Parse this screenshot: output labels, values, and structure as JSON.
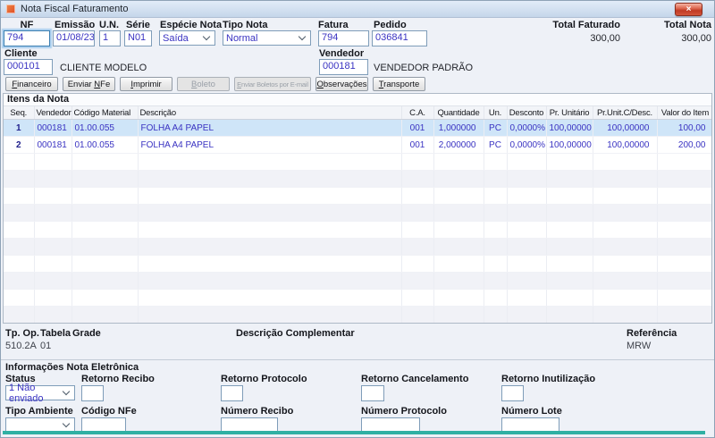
{
  "window": {
    "title": "Nota Fiscal Faturamento",
    "close_glyph": "×"
  },
  "colors": {
    "titlebar": "#c5d6ea",
    "window_bg": "#eef1f7",
    "selected_row": "#cfe5f8",
    "value_text": "#3a33c2",
    "close_button_red": "#c03a24",
    "teal_bottom_bar": "#2fb0a3"
  },
  "header": {
    "fields": [
      {
        "label": "NF",
        "value": "794",
        "type": "input"
      },
      {
        "label": "Emissão",
        "value": "01/08/23",
        "type": "input"
      },
      {
        "label": "U.N.",
        "value": "1",
        "type": "input"
      },
      {
        "label": "Série",
        "value": "N01",
        "type": "input"
      },
      {
        "label": "Espécie Nota",
        "value": "Saída",
        "type": "select"
      },
      {
        "label": "Tipo Nota",
        "value": "Normal",
        "type": "select"
      },
      {
        "label": "Fatura",
        "value": "794",
        "type": "input"
      },
      {
        "label": "Pedido",
        "value": "036841",
        "type": "input"
      }
    ],
    "total_faturado": {
      "label": "Total Faturado",
      "value": "300,00"
    },
    "total_nota": {
      "label": "Total Nota",
      "value": "300,00"
    },
    "cliente": {
      "label": "Cliente",
      "code": "000101",
      "name": "CLIENTE MODELO"
    },
    "vendedor": {
      "label": "Vendedor",
      "code": "000181",
      "name": "VENDEDOR PADRÃO"
    }
  },
  "toolbar": {
    "buttons": [
      {
        "pre": "",
        "key": "F",
        "post": "inanceiro",
        "enabled": true
      },
      {
        "pre": "Enviar ",
        "key": "N",
        "post": "Fe",
        "enabled": true
      },
      {
        "pre": "",
        "key": "I",
        "post": "mprimir",
        "enabled": true
      },
      {
        "pre": "",
        "key": "B",
        "post": "oleto",
        "enabled": false
      },
      {
        "pre": "",
        "key": "E",
        "post": "nviar Boletos por E-mail",
        "enabled": false
      },
      {
        "pre": "",
        "key": "O",
        "post": "bservações",
        "enabled": true
      },
      {
        "pre": "",
        "key": "T",
        "post": "ransporte",
        "enabled": true
      }
    ]
  },
  "itens": {
    "section_title": "Itens da Nota",
    "columns": [
      "Seq.",
      "Vendedor",
      "Código Material",
      "Descrição",
      "C.A.",
      "Quantidade",
      "Un.",
      "Desconto",
      "Pr. Unitário",
      "Pr.Unit.C/Desc.",
      "Valor do Item"
    ],
    "rows": [
      [
        "1",
        "000181",
        "01.00.055",
        "FOLHA A4 PAPEL",
        "001",
        "1,000000",
        "PC",
        "0,0000%",
        "100,00000",
        "100,00000",
        "100,00"
      ],
      [
        "2",
        "000181",
        "01.00.055",
        "FOLHA A4 PAPEL",
        "001",
        "2,000000",
        "PC",
        "0,0000%",
        "100,00000",
        "100,00000",
        "200,00"
      ]
    ],
    "selected_row_index": 0
  },
  "footer": {
    "tp_op": {
      "label": "Tp. Op.",
      "value": "510.2A"
    },
    "tabela": {
      "label": "Tabela",
      "value": "01"
    },
    "grade": {
      "label": "Grade",
      "value": ""
    },
    "descricao_complementar": {
      "label": "Descrição Complementar",
      "value": ""
    },
    "referencia": {
      "label": "Referência",
      "value": "MRW"
    }
  },
  "nfe": {
    "section_title": "Informações Nota Eletrônica",
    "status": {
      "label": "Status",
      "value": "1 Não enviado",
      "type": "select"
    },
    "retorno_recibo": {
      "label": "Retorno Recibo",
      "value": ""
    },
    "retorno_protocolo": {
      "label": "Retorno Protocolo",
      "value": ""
    },
    "retorno_cancelamento": {
      "label": "Retorno Cancelamento",
      "value": ""
    },
    "retorno_inutilizacao": {
      "label": "Retorno Inutilização",
      "value": ""
    },
    "tipo_ambiente": {
      "label": "Tipo Ambiente",
      "value": "",
      "type": "select"
    },
    "codigo_nfe": {
      "label": "Código NFe",
      "value": ""
    },
    "numero_recibo": {
      "label": "Número Recibo",
      "value": ""
    },
    "numero_protocolo": {
      "label": "Número Protocolo",
      "value": ""
    },
    "numero_lote": {
      "label": "Número Lote",
      "value": ""
    }
  }
}
